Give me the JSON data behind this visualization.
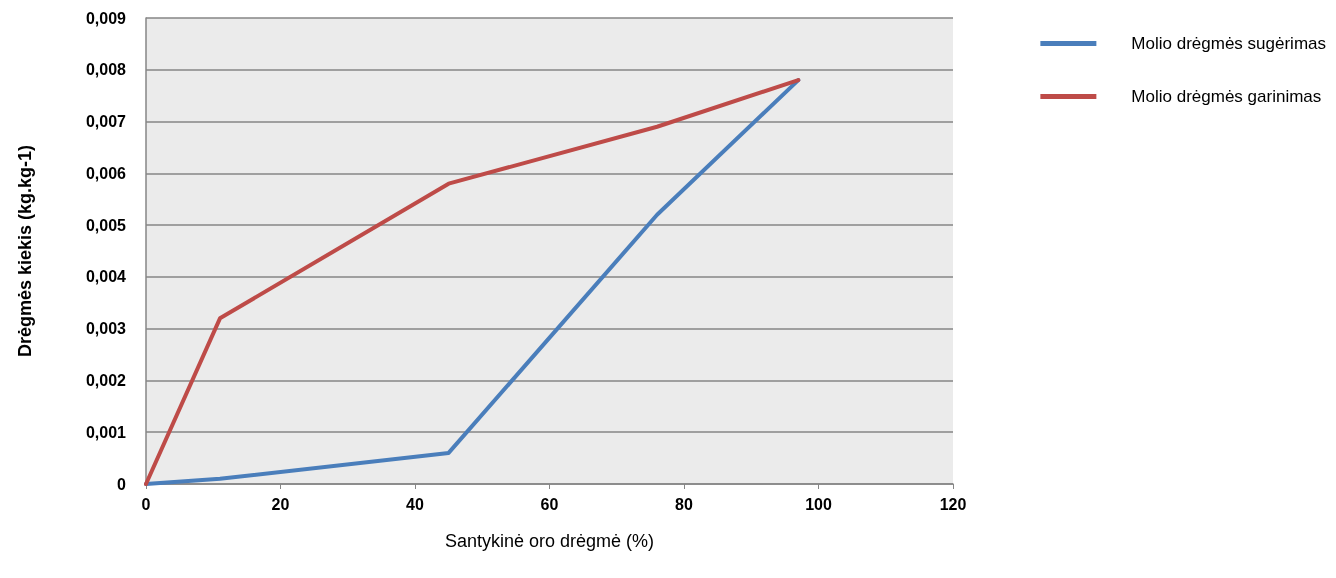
{
  "chart_data": {
    "type": "line",
    "xlabel": "Santykinė oro drėgmė (%)",
    "ylabel": "Drėgmės kiekis (kg.kg-1)",
    "x": [
      0,
      11,
      45,
      76,
      97
    ],
    "series": [
      {
        "name": "Molio drėgmės sugėrimas",
        "color": "#4a7ebb",
        "values": [
          0,
          0.0001,
          0.0006,
          0.0052,
          0.0078
        ]
      },
      {
        "name": "Molio drėgmės garinimas",
        "color": "#be4b48",
        "values": [
          0,
          0.0032,
          0.0058,
          0.0069,
          0.0078
        ]
      }
    ],
    "xlim": [
      0,
      120
    ],
    "xticks": [
      0,
      20,
      40,
      60,
      80,
      100,
      120
    ],
    "ylim": [
      0,
      0.009
    ],
    "yticks": [
      {
        "value": 0,
        "label": "0"
      },
      {
        "value": 0.001,
        "label": "0,001"
      },
      {
        "value": 0.002,
        "label": "0,002"
      },
      {
        "value": 0.003,
        "label": "0,003"
      },
      {
        "value": 0.004,
        "label": "0,004"
      },
      {
        "value": 0.005,
        "label": "0,005"
      },
      {
        "value": 0.006,
        "label": "0,006"
      },
      {
        "value": 0.007,
        "label": "0,007"
      },
      {
        "value": 0.008,
        "label": "0,008"
      },
      {
        "value": 0.009,
        "label": "0,009"
      }
    ],
    "grid": "y",
    "legend": "top right",
    "marker": "none",
    "line_style": "solid"
  }
}
